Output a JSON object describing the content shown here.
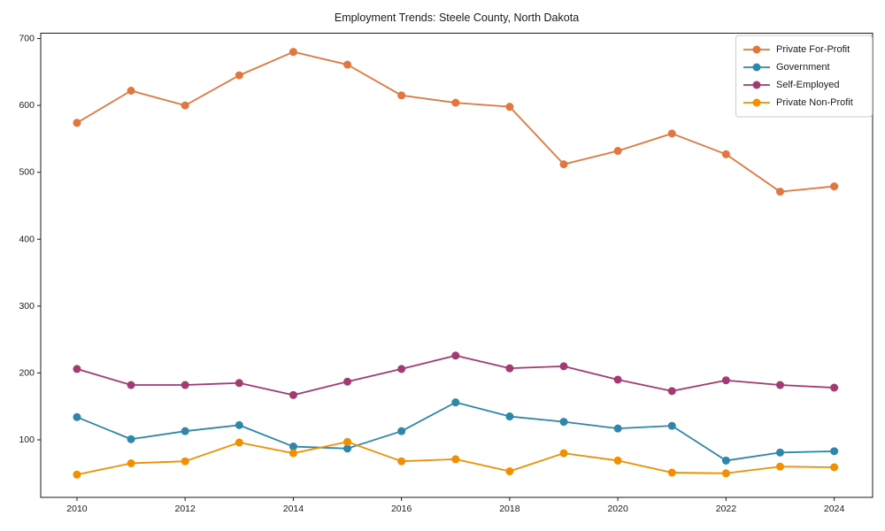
{
  "chart_data": {
    "type": "line",
    "title": "Employment Trends: Steele County, North Dakota",
    "xlabel": "",
    "ylabel": "",
    "x": [
      2010,
      2011,
      2012,
      2013,
      2014,
      2015,
      2016,
      2017,
      2018,
      2019,
      2020,
      2021,
      2022,
      2023,
      2024
    ],
    "series": [
      {
        "name": "Private For-Profit",
        "color": "#E2763E",
        "values": [
          574,
          622,
          600,
          645,
          680,
          661,
          615,
          604,
          598,
          512,
          532,
          558,
          527,
          471,
          479
        ]
      },
      {
        "name": "Government",
        "color": "#2E86AB",
        "values": [
          134,
          101,
          113,
          122,
          90,
          87,
          113,
          156,
          135,
          127,
          117,
          121,
          69,
          81,
          83
        ]
      },
      {
        "name": "Self-Employed",
        "color": "#A23B72",
        "values": [
          206,
          182,
          182,
          185,
          167,
          187,
          206,
          226,
          207,
          210,
          190,
          173,
          189,
          182,
          178
        ]
      },
      {
        "name": "Private Non-Profit",
        "color": "#F18F01",
        "values": [
          48,
          65,
          68,
          96,
          80,
          97,
          68,
          71,
          53,
          80,
          69,
          51,
          50,
          60,
          59
        ]
      }
    ],
    "xticks": [
      2010,
      2012,
      2014,
      2016,
      2018,
      2020,
      2022,
      2024
    ],
    "yticks": [
      100,
      200,
      300,
      400,
      500,
      600,
      700
    ],
    "xlim": [
      2009.33,
      2024.71
    ],
    "ylim": [
      14,
      708
    ],
    "grid": false,
    "legend_position": "upper right",
    "marker": "circle",
    "background": "#ffffff",
    "axis_color": "#1a1a1a",
    "legend_border_color": "#cccccc"
  }
}
